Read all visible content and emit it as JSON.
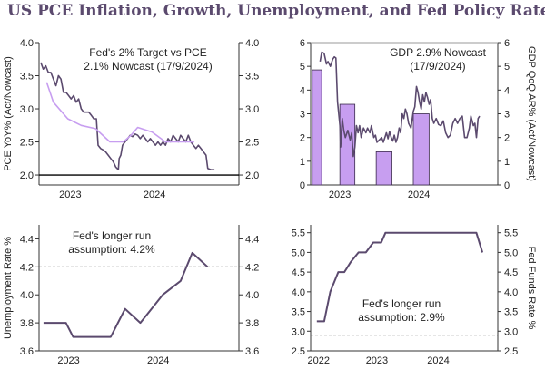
{
  "title": "US PCE Inflation, Growth, Unemployment, and Fed Policy Rate",
  "colors": {
    "title": "#5b4a6e",
    "line": "#5b4a6e",
    "line_light": "#c79ef0",
    "bar": "#c79ef0",
    "bar_edge": "#3a2a4a"
  },
  "chart_data": [
    {
      "type": "line",
      "ylabel_left": "PCE YoY% (Act/Nowcast)",
      "annotation": [
        "Fed's 2% Target vs PCE",
        "2.1% Nowcast (17/9/2024)"
      ],
      "xlim": [
        2022.58,
        2024.95
      ],
      "ylim": [
        1.85,
        4.0
      ],
      "yticks": [
        "4.0",
        "3.5",
        "3.0",
        "2.5",
        "2.0"
      ],
      "yticks_right": [
        "4.0",
        "3.5",
        "3.0",
        "2.5",
        "2.0"
      ],
      "xticks": [
        {
          "x": 2022.95,
          "label": "2023"
        },
        {
          "x": 2023.95,
          "label": "2024"
        }
      ],
      "hline": 2.0,
      "series": [
        {
          "values": [
            [
              2022.6,
              3.7
            ],
            [
              2022.63,
              3.6
            ],
            [
              2022.66,
              3.65
            ],
            [
              2022.69,
              3.55
            ],
            [
              2022.72,
              3.55
            ],
            [
              2022.75,
              3.45
            ],
            [
              2022.78,
              3.35
            ],
            [
              2022.81,
              3.5
            ],
            [
              2022.84,
              3.45
            ],
            [
              2022.87,
              3.25
            ],
            [
              2022.9,
              3.25
            ],
            [
              2022.93,
              3.2
            ],
            [
              2022.96,
              3.15
            ],
            [
              2022.99,
              3.2
            ],
            [
              2023.02,
              3.1
            ],
            [
              2023.05,
              3.15
            ],
            [
              2023.08,
              3.0
            ],
            [
              2023.11,
              2.95
            ],
            [
              2023.14,
              2.95
            ],
            [
              2023.17,
              2.95
            ],
            [
              2023.2,
              2.9
            ],
            [
              2023.23,
              2.85
            ],
            [
              2023.26,
              2.85
            ],
            [
              2023.28,
              2.45
            ],
            [
              2023.31,
              2.4
            ],
            [
              2023.34,
              2.38
            ],
            [
              2023.37,
              2.35
            ],
            [
              2023.4,
              2.3
            ],
            [
              2023.43,
              2.25
            ],
            [
              2023.46,
              2.2
            ],
            [
              2023.49,
              2.12
            ],
            [
              2023.52,
              2.08
            ],
            [
              2023.53,
              2.25
            ],
            [
              2023.55,
              2.3
            ],
            [
              2023.57,
              2.45
            ],
            [
              2023.6,
              2.5
            ],
            [
              2023.63,
              2.55
            ],
            [
              2023.66,
              2.6
            ],
            [
              2023.69,
              2.58
            ],
            [
              2023.72,
              2.62
            ],
            [
              2023.75,
              2.6
            ],
            [
              2023.78,
              2.55
            ],
            [
              2023.81,
              2.6
            ],
            [
              2023.84,
              2.55
            ],
            [
              2023.87,
              2.5
            ],
            [
              2023.9,
              2.55
            ],
            [
              2023.93,
              2.5
            ],
            [
              2023.96,
              2.45
            ],
            [
              2023.99,
              2.5
            ],
            [
              2024.02,
              2.45
            ],
            [
              2024.05,
              2.5
            ],
            [
              2024.08,
              2.45
            ],
            [
              2024.11,
              2.55
            ],
            [
              2024.14,
              2.5
            ],
            [
              2024.17,
              2.6
            ],
            [
              2024.2,
              2.55
            ],
            [
              2024.23,
              2.5
            ],
            [
              2024.26,
              2.6
            ],
            [
              2024.29,
              2.55
            ],
            [
              2024.32,
              2.5
            ],
            [
              2024.35,
              2.6
            ],
            [
              2024.38,
              2.5
            ],
            [
              2024.41,
              2.45
            ],
            [
              2024.44,
              2.4
            ],
            [
              2024.47,
              2.45
            ],
            [
              2024.5,
              2.4
            ],
            [
              2024.53,
              2.35
            ],
            [
              2024.56,
              2.3
            ],
            [
              2024.58,
              2.1
            ],
            [
              2024.62,
              2.08
            ],
            [
              2024.66,
              2.08
            ]
          ]
        },
        {
          "values": [
            [
              2022.67,
              3.4
            ],
            [
              2022.75,
              3.1
            ],
            [
              2022.92,
              2.85
            ],
            [
              2023.08,
              2.75
            ],
            [
              2023.25,
              2.7
            ],
            [
              2023.42,
              2.5
            ],
            [
              2023.58,
              2.5
            ],
            [
              2023.67,
              2.6
            ],
            [
              2023.75,
              2.72
            ],
            [
              2023.92,
              2.65
            ],
            [
              2024.08,
              2.5
            ],
            [
              2024.25,
              2.5
            ],
            [
              2024.42,
              2.5
            ]
          ]
        }
      ]
    },
    {
      "type": "bar+line",
      "ylabel_right": "GDP QoQ AR% (Act/Nowcast)",
      "annotation": [
        "GDP 2.9% Nowcast",
        "(17/9/2024)"
      ],
      "xlim": [
        2022.58,
        2024.95
      ],
      "ylim": [
        0,
        6
      ],
      "yticks": [
        "6",
        "5",
        "4",
        "3",
        "2",
        "1",
        "0"
      ],
      "yticks_right": [
        "6",
        "5",
        "4",
        "3",
        "2",
        "1",
        "0"
      ],
      "xticks": [
        {
          "x": 2022.95,
          "label": "2023"
        },
        {
          "x": 2023.95,
          "label": "2024"
        }
      ],
      "hline": 6,
      "bars": [
        {
          "x0": 2022.6,
          "x1": 2022.72,
          "value": 4.85
        },
        {
          "x0": 2022.95,
          "x1": 2023.14,
          "value": 3.4
        },
        {
          "x0": 2023.41,
          "x1": 2023.61,
          "value": 1.4
        },
        {
          "x0": 2023.88,
          "x1": 2024.08,
          "value": 3.0
        }
      ],
      "series": [
        {
          "values": [
            [
              2022.7,
              5.2
            ],
            [
              2022.72,
              5.6
            ],
            [
              2022.75,
              5.55
            ],
            [
              2022.78,
              5.1
            ],
            [
              2022.8,
              5.2
            ],
            [
              2022.83,
              5.0
            ],
            [
              2022.86,
              5.3
            ],
            [
              2022.88,
              5.4
            ],
            [
              2022.9,
              5.35
            ],
            [
              2022.92,
              3.5
            ],
            [
              2022.95,
              2.5
            ],
            [
              2022.96,
              1.6
            ],
            [
              2022.98,
              2.8
            ],
            [
              2023.0,
              2.3
            ],
            [
              2023.02,
              2.0
            ],
            [
              2023.05,
              2.3
            ],
            [
              2023.08,
              1.9
            ],
            [
              2023.1,
              2.2
            ],
            [
              2023.12,
              1.2
            ],
            [
              2023.14,
              1.6
            ],
            [
              2023.16,
              2.5
            ],
            [
              2023.18,
              2.2
            ],
            [
              2023.2,
              2.5
            ],
            [
              2023.22,
              2.0
            ],
            [
              2023.25,
              2.4
            ],
            [
              2023.28,
              2.2
            ],
            [
              2023.3,
              2.4
            ],
            [
              2023.33,
              2.2
            ],
            [
              2023.35,
              2.5
            ],
            [
              2023.38,
              2.0
            ],
            [
              2023.4,
              2.1
            ],
            [
              2023.42,
              1.8
            ],
            [
              2023.45,
              1.9
            ],
            [
              2023.48,
              2.0
            ],
            [
              2023.5,
              1.8
            ],
            [
              2023.52,
              2.0
            ],
            [
              2023.54,
              2.2
            ],
            [
              2023.56,
              1.95
            ],
            [
              2023.58,
              2.25
            ],
            [
              2023.6,
              2.0
            ],
            [
              2023.62,
              1.85
            ],
            [
              2023.64,
              2.1
            ],
            [
              2023.66,
              1.8
            ],
            [
              2023.68,
              2.0
            ],
            [
              2023.7,
              2.4
            ],
            [
              2023.72,
              2.2
            ],
            [
              2023.74,
              3.0
            ],
            [
              2023.76,
              2.8
            ],
            [
              2023.78,
              3.2
            ],
            [
              2023.8,
              3.0
            ],
            [
              2023.82,
              2.6
            ],
            [
              2023.85,
              2.4
            ],
            [
              2023.88,
              3.1
            ],
            [
              2023.9,
              3.3
            ],
            [
              2023.92,
              4.15
            ],
            [
              2023.94,
              3.9
            ],
            [
              2023.96,
              3.5
            ],
            [
              2023.98,
              3.2
            ],
            [
              2024.0,
              3.8
            ],
            [
              2024.02,
              3.5
            ],
            [
              2024.04,
              3.9
            ],
            [
              2024.06,
              3.7
            ],
            [
              2024.08,
              3.4
            ],
            [
              2024.1,
              3.6
            ],
            [
              2024.12,
              2.8
            ],
            [
              2024.14,
              2.6
            ],
            [
              2024.17,
              2.8
            ],
            [
              2024.2,
              2.55
            ],
            [
              2024.23,
              2.5
            ],
            [
              2024.26,
              2.7
            ],
            [
              2024.29,
              2.2
            ],
            [
              2024.32,
              2.0
            ],
            [
              2024.35,
              2.1
            ],
            [
              2024.38,
              2.6
            ],
            [
              2024.41,
              2.8
            ],
            [
              2024.44,
              2.6
            ],
            [
              2024.47,
              2.8
            ],
            [
              2024.5,
              2.9
            ],
            [
              2024.53,
              2.0
            ],
            [
              2024.56,
              2.0
            ],
            [
              2024.59,
              2.4
            ],
            [
              2024.61,
              2.9
            ],
            [
              2024.64,
              2.5
            ],
            [
              2024.66,
              2.6
            ],
            [
              2024.68,
              2.0
            ],
            [
              2024.7,
              2.8
            ],
            [
              2024.72,
              2.9
            ]
          ]
        }
      ]
    },
    {
      "type": "line",
      "ylabel_left": "Unemployment Rate %",
      "annotation": [
        "Fed's longer run",
        "assumption: 4.2%"
      ],
      "xlim": [
        2022.62,
        2024.85
      ],
      "ylim": [
        3.6,
        4.5
      ],
      "yticks": [
        "4.4",
        "4.2",
        "4.0",
        "3.8",
        "3.6"
      ],
      "yticks_right": [
        "4.4",
        "4.2",
        "4.0",
        "3.8",
        "3.6"
      ],
      "xticks": [
        {
          "x": 2022.95,
          "label": "2023"
        },
        {
          "x": 2023.95,
          "label": "2024"
        }
      ],
      "hline": 4.2,
      "series": [
        {
          "values": [
            [
              2022.67,
              3.8
            ],
            [
              2022.92,
              3.8
            ],
            [
              2023.0,
              3.7
            ],
            [
              2023.17,
              3.7
            ],
            [
              2023.42,
              3.7
            ],
            [
              2023.58,
              3.9
            ],
            [
              2023.75,
              3.8
            ],
            [
              2024.0,
              4.0
            ],
            [
              2024.2,
              4.1
            ],
            [
              2024.33,
              4.3
            ],
            [
              2024.5,
              4.2
            ]
          ]
        }
      ]
    },
    {
      "type": "line",
      "ylabel_right": "Fed Funds Rate %",
      "annotation": [
        "Fed's longer run",
        "assumption: 2.9%"
      ],
      "xlim": [
        2021.9,
        2024.95
      ],
      "ylim": [
        2.5,
        5.7
      ],
      "yticks": [
        "5.5",
        "5.0",
        "4.5",
        "4.0",
        "3.5",
        "3.0",
        "2.5"
      ],
      "yticks_right": [
        "5.5",
        "5.0",
        "4.5",
        "4.0",
        "3.5",
        "3.0",
        "2.5"
      ],
      "xticks": [
        {
          "x": 2022.03,
          "label": "2022"
        },
        {
          "x": 2022.98,
          "label": "2023"
        },
        {
          "x": 2023.98,
          "label": "2024"
        }
      ],
      "hline": 2.9,
      "series": [
        {
          "values": [
            [
              2022.0,
              3.25
            ],
            [
              2022.12,
              3.25
            ],
            [
              2022.22,
              4.0
            ],
            [
              2022.35,
              4.5
            ],
            [
              2022.45,
              4.5
            ],
            [
              2022.55,
              4.75
            ],
            [
              2022.68,
              5.0
            ],
            [
              2022.8,
              5.0
            ],
            [
              2022.92,
              5.25
            ],
            [
              2023.05,
              5.25
            ],
            [
              2023.12,
              5.5
            ],
            [
              2024.6,
              5.5
            ],
            [
              2024.7,
              5.0
            ]
          ]
        }
      ]
    }
  ]
}
